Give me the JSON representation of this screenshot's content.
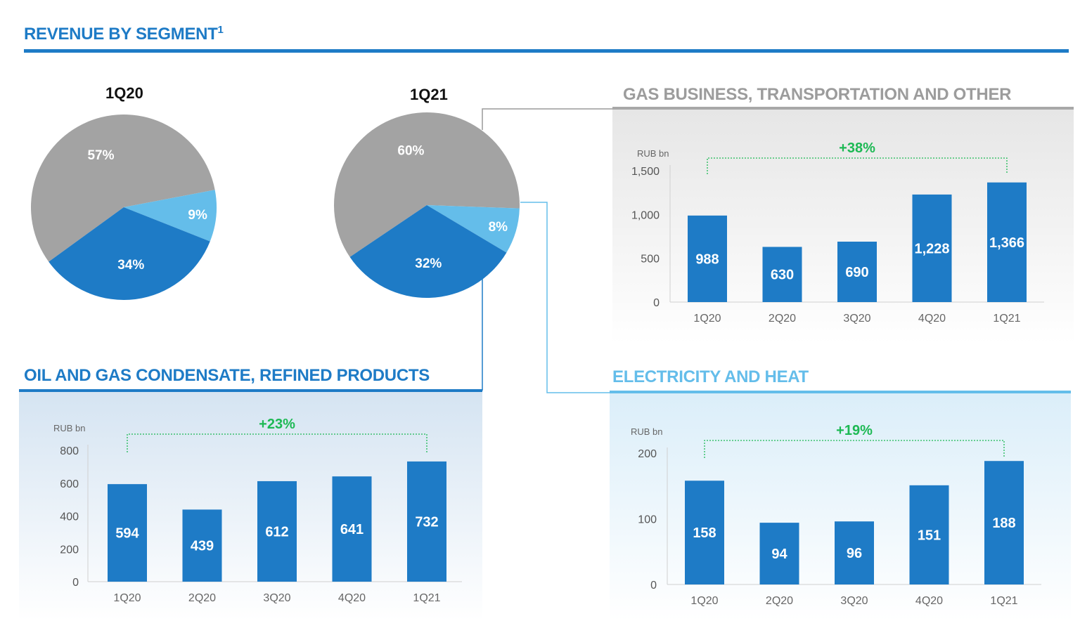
{
  "title": "REVENUE BY SEGMENT",
  "title_sup": "1",
  "colors": {
    "blue": "#1e7bc6",
    "light_blue": "#64bdea",
    "gray": "#a3a3a3",
    "green": "#1db954"
  },
  "chart_data": [
    {
      "type": "pie",
      "title": "1Q20",
      "labels": [
        "57%",
        "9%",
        "34%"
      ],
      "values": [
        57,
        9,
        34
      ],
      "colors": [
        "#a3a3a3",
        "#64bdea",
        "#1e7bc6"
      ]
    },
    {
      "type": "pie",
      "title": "1Q21",
      "labels": [
        "60%",
        "8%",
        "32%"
      ],
      "values": [
        60,
        8,
        32
      ],
      "colors": [
        "#a3a3a3",
        "#64bdea",
        "#1e7bc6"
      ]
    },
    {
      "type": "bar",
      "title": "GAS BUSINESS, TRANSPORTATION AND OTHER",
      "ylabel": "RUB bn",
      "categories": [
        "1Q20",
        "2Q20",
        "3Q20",
        "4Q20",
        "1Q21"
      ],
      "values": [
        988,
        630,
        690,
        1228,
        1366
      ],
      "value_labels": [
        "988",
        "630",
        "690",
        "1,228",
        "1,366"
      ],
      "yticks": [
        "0",
        "500",
        "1,000",
        "1,500"
      ],
      "ytick_values": [
        0,
        500,
        1000,
        1500
      ],
      "ylim": [
        0,
        1500
      ],
      "growth_label": "+38%"
    },
    {
      "type": "bar",
      "title": "OIL AND GAS CONDENSATE, REFINED PRODUCTS",
      "ylabel": "RUB bn",
      "categories": [
        "1Q20",
        "2Q20",
        "3Q20",
        "4Q20",
        "1Q21"
      ],
      "values": [
        594,
        439,
        612,
        641,
        732
      ],
      "value_labels": [
        "594",
        "439",
        "612",
        "641",
        "732"
      ],
      "yticks": [
        "0",
        "200",
        "400",
        "600",
        "800"
      ],
      "ytick_values": [
        0,
        200,
        400,
        600,
        800
      ],
      "ylim": [
        0,
        800
      ],
      "growth_label": "+23%"
    },
    {
      "type": "bar",
      "title": "ELECTRICITY AND HEAT",
      "ylabel": "RUB bn",
      "categories": [
        "1Q20",
        "2Q20",
        "3Q20",
        "4Q20",
        "1Q21"
      ],
      "values": [
        158,
        94,
        96,
        151,
        188
      ],
      "value_labels": [
        "158",
        "94",
        "96",
        "151",
        "188"
      ],
      "yticks": [
        "0",
        "100",
        "200"
      ],
      "ytick_values": [
        0,
        100,
        200
      ],
      "ylim": [
        0,
        200
      ],
      "growth_label": "+19%"
    }
  ]
}
